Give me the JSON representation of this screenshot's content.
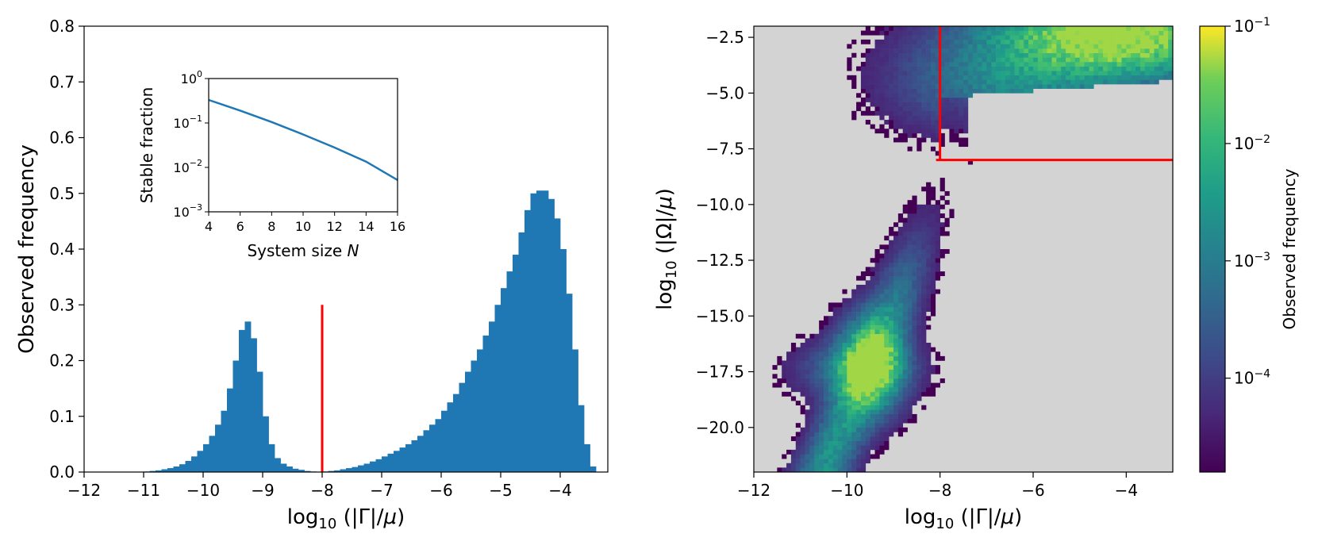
{
  "chart_data": [
    {
      "type": "bar",
      "subtype": "histogram",
      "xlabel": "log10(|Γ|/μ)",
      "ylabel": "Observed frequency",
      "xlim": [
        -12,
        -3.2
      ],
      "ylim": [
        0,
        0.8
      ],
      "xticks": [
        -12,
        -11,
        -10,
        -9,
        -8,
        -7,
        -6,
        -5,
        -4
      ],
      "xtick_labels": [
        "−12",
        "−11",
        "−10",
        "−9",
        "−8",
        "−7",
        "−6",
        "−5",
        "−4"
      ],
      "yticks": [
        0.0,
        0.1,
        0.2,
        0.3,
        0.4,
        0.5,
        0.6,
        0.7,
        0.8
      ],
      "ytick_labels": [
        "0.0",
        "0.1",
        "0.2",
        "0.3",
        "0.4",
        "0.5",
        "0.6",
        "0.7",
        "0.8"
      ],
      "bar_color": "#1f77b4",
      "bin_width": 0.1,
      "bins": [
        [
          -11.0,
          0.001
        ],
        [
          -10.9,
          0.002
        ],
        [
          -10.8,
          0.003
        ],
        [
          -10.7,
          0.005
        ],
        [
          -10.6,
          0.007
        ],
        [
          -10.5,
          0.01
        ],
        [
          -10.4,
          0.014
        ],
        [
          -10.3,
          0.02
        ],
        [
          -10.2,
          0.028
        ],
        [
          -10.1,
          0.038
        ],
        [
          -10.0,
          0.05
        ],
        [
          -9.9,
          0.065
        ],
        [
          -9.8,
          0.085
        ],
        [
          -9.7,
          0.11
        ],
        [
          -9.6,
          0.15
        ],
        [
          -9.5,
          0.2
        ],
        [
          -9.4,
          0.255
        ],
        [
          -9.3,
          0.27
        ],
        [
          -9.2,
          0.24
        ],
        [
          -9.1,
          0.18
        ],
        [
          -9.0,
          0.1
        ],
        [
          -8.9,
          0.05
        ],
        [
          -8.8,
          0.025
        ],
        [
          -8.7,
          0.015
        ],
        [
          -8.6,
          0.01
        ],
        [
          -8.5,
          0.006
        ],
        [
          -8.4,
          0.004
        ],
        [
          -8.3,
          0.002
        ],
        [
          -8.2,
          0.001
        ],
        [
          -8.1,
          0.0005
        ],
        [
          -8.0,
          0.001
        ],
        [
          -7.9,
          0.002
        ],
        [
          -7.8,
          0.003
        ],
        [
          -7.7,
          0.005
        ],
        [
          -7.6,
          0.007
        ],
        [
          -7.5,
          0.009
        ],
        [
          -7.4,
          0.012
        ],
        [
          -7.3,
          0.015
        ],
        [
          -7.2,
          0.019
        ],
        [
          -7.1,
          0.023
        ],
        [
          -7.0,
          0.028
        ],
        [
          -6.9,
          0.033
        ],
        [
          -6.8,
          0.038
        ],
        [
          -6.7,
          0.044
        ],
        [
          -6.6,
          0.05
        ],
        [
          -6.5,
          0.057
        ],
        [
          -6.4,
          0.065
        ],
        [
          -6.3,
          0.075
        ],
        [
          -6.2,
          0.085
        ],
        [
          -6.1,
          0.095
        ],
        [
          -6.0,
          0.11
        ],
        [
          -5.9,
          0.125
        ],
        [
          -5.8,
          0.14
        ],
        [
          -5.7,
          0.16
        ],
        [
          -5.6,
          0.18
        ],
        [
          -5.5,
          0.2
        ],
        [
          -5.4,
          0.22
        ],
        [
          -5.3,
          0.245
        ],
        [
          -5.2,
          0.27
        ],
        [
          -5.1,
          0.3
        ],
        [
          -5.0,
          0.33
        ],
        [
          -4.9,
          0.36
        ],
        [
          -4.8,
          0.39
        ],
        [
          -4.7,
          0.43
        ],
        [
          -4.6,
          0.47
        ],
        [
          -4.5,
          0.5
        ],
        [
          -4.4,
          0.505
        ],
        [
          -4.3,
          0.505
        ],
        [
          -4.2,
          0.49
        ],
        [
          -4.1,
          0.455
        ],
        [
          -4.0,
          0.4
        ],
        [
          -3.9,
          0.32
        ],
        [
          -3.8,
          0.22
        ],
        [
          -3.7,
          0.12
        ],
        [
          -3.6,
          0.05
        ],
        [
          -3.5,
          0.01
        ]
      ],
      "threshold": {
        "x": -8,
        "y_top": 0.3,
        "color": "#ff0000"
      },
      "inset": {
        "type": "line",
        "xlabel_text": "System size ",
        "xlabel_var": "N",
        "ylabel": "Stable fraction",
        "xlim": [
          4,
          16
        ],
        "ylim_log10": [
          -3,
          0
        ],
        "yscale": "log",
        "xticks": [
          4,
          6,
          8,
          10,
          12,
          14,
          16
        ],
        "xtick_labels": [
          "4",
          "6",
          "8",
          "10",
          "12",
          "14",
          "16"
        ],
        "yticks_exp": [
          -3,
          -2,
          -1,
          0
        ],
        "ytick_base": "10",
        "ytick_exps": [
          "−3",
          "−2",
          "−1",
          "0"
        ],
        "line_color": "#1f77b4",
        "x": [
          4,
          6,
          8,
          10,
          12,
          14,
          16
        ],
        "y": [
          0.33,
          0.19,
          0.105,
          0.055,
          0.028,
          0.0135,
          0.0052
        ]
      }
    },
    {
      "type": "heatmap",
      "xlabel": "log10(|Γ|/μ)",
      "ylabel": "log10(|Ω|/μ)",
      "xlim": [
        -12,
        -3
      ],
      "ylim": [
        -22,
        -2
      ],
      "xticks": [
        -12,
        -10,
        -8,
        -6,
        -4
      ],
      "xtick_labels": [
        "−12",
        "−10",
        "−8",
        "−6",
        "−4"
      ],
      "yticks": [
        -20,
        -17.5,
        -15,
        -12.5,
        -10,
        -7.5,
        -5,
        -2.5
      ],
      "ytick_labels": [
        "−20.0",
        "−17.5",
        "−15.0",
        "−12.5",
        "−10.0",
        "−7.5",
        "−5.0",
        "−2.5"
      ],
      "background_color": "#d3d3d3",
      "colormap": "viridis",
      "colorbar": {
        "label": "Observed frequency",
        "scale": "log",
        "range_log10": [
          -4.8,
          -1
        ],
        "tick_exps": [
          -4,
          -3,
          -2,
          -1
        ],
        "tick_base": "10",
        "tick_exp_labels": [
          "−4",
          "−3",
          "−2",
          "−1"
        ]
      },
      "density_peaks": [
        {
          "x": -9.5,
          "y": -17.2,
          "peak_frequency": 0.006
        },
        {
          "x": -4.3,
          "y": -2.5,
          "peak_frequency": 0.05
        }
      ],
      "threshold_lines": {
        "x": -8,
        "y": -8,
        "color": "#ff0000"
      }
    }
  ]
}
